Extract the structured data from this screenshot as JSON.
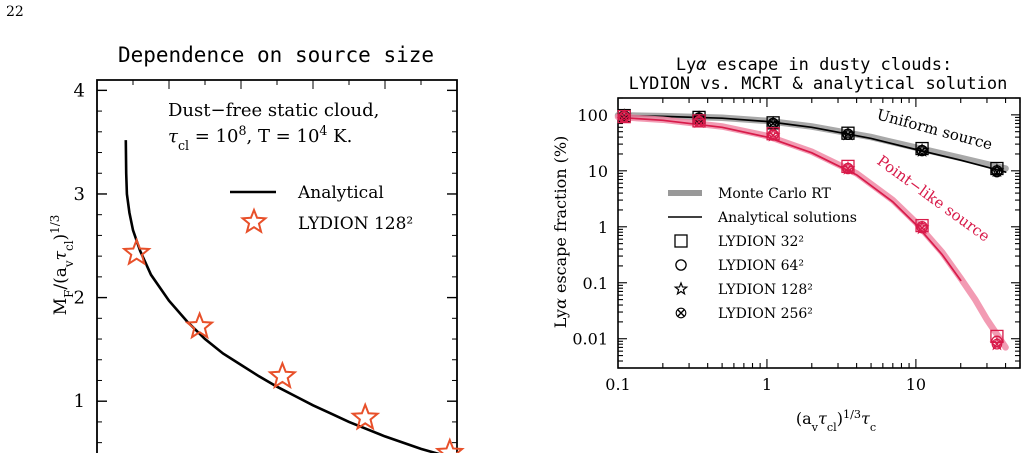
{
  "page": {
    "number": "22"
  },
  "chart_data": [
    {
      "type": "line",
      "title": "Dependence on source size",
      "ylabel": "M_F/(a_v τ_cl)^{1/3}",
      "xlabel": "",
      "ylim": [
        0.5,
        4.1
      ],
      "yticks": [
        1,
        2,
        3,
        4
      ],
      "xlim": [
        0,
        1
      ],
      "note_lines": [
        "Dust−free static cloud,",
        "τ_cl = 10^8, T = 10^4 K."
      ],
      "legend": [
        {
          "label": "Analytical",
          "kind": "line",
          "color": "#000000"
        },
        {
          "label": "LYDION 128²",
          "kind": "star",
          "color": "#e8502a"
        }
      ],
      "series": [
        {
          "name": "Analytical",
          "color": "#000000",
          "x": [
            0.08,
            0.081,
            0.083,
            0.09,
            0.1,
            0.12,
            0.15,
            0.2,
            0.25,
            0.3,
            0.35,
            0.4,
            0.45,
            0.5,
            0.55,
            0.6,
            0.65,
            0.7,
            0.75,
            0.8,
            0.85,
            0.9,
            0.95,
            1.0
          ],
          "y": [
            3.52,
            3.2,
            3.0,
            2.82,
            2.65,
            2.45,
            2.22,
            1.97,
            1.77,
            1.6,
            1.46,
            1.35,
            1.24,
            1.14,
            1.05,
            0.96,
            0.88,
            0.8,
            0.73,
            0.66,
            0.6,
            0.54,
            0.49,
            0.44
          ]
        },
        {
          "name": "LYDION 128²",
          "color": "#e8502a",
          "x": [
            0.11,
            0.285,
            0.515,
            0.745,
            0.98
          ],
          "y": [
            2.43,
            1.72,
            1.24,
            0.84,
            0.5
          ]
        }
      ]
    },
    {
      "type": "line",
      "title": "Lyα escape in dusty clouds:",
      "subtitle": "LYDION vs. MCRT & analytical solution",
      "xlabel": "(a_v τ_cl)^{1/3} τ_c",
      "ylabel": "Lyα escape fraction (%)",
      "xscale": "log",
      "yscale": "log",
      "xlim": [
        0.1,
        50
      ],
      "ylim": [
        0.003,
        200
      ],
      "xticks": [
        0.1,
        1,
        10
      ],
      "xtick_labels": [
        "0.1",
        "1",
        "10"
      ],
      "yticks": [
        0.01,
        0.1,
        1,
        10,
        100
      ],
      "ytick_labels": [
        "0.01",
        "0.1",
        "1",
        "10",
        "100"
      ],
      "annotations": [
        {
          "text": "Uniform source",
          "color": "#000000"
        },
        {
          "text": "Point−like source",
          "color": "#d81b4a"
        }
      ],
      "legend": [
        {
          "label": "Monte Carlo RT",
          "kind": "thick-line",
          "color": "#999999"
        },
        {
          "label": "Analytical solutions",
          "kind": "line",
          "color": "#000000"
        },
        {
          "label": "LYDION 32²",
          "kind": "square"
        },
        {
          "label": "LYDION 64²",
          "kind": "circle"
        },
        {
          "label": "LYDION 128²",
          "kind": "star"
        },
        {
          "label": "LYDION 256²",
          "kind": "cross"
        }
      ],
      "series": [
        {
          "name": "Monte Carlo RT (uniform)",
          "role": "mc",
          "color": "#9a9a9a",
          "x": [
            0.1,
            0.2,
            0.5,
            1,
            2,
            5,
            10,
            20,
            40
          ],
          "y": [
            98,
            95,
            89,
            78,
            62,
            40,
            26,
            17,
            11
          ]
        },
        {
          "name": "Analytical (uniform)",
          "role": "analytic",
          "color": "#000000",
          "x": [
            0.1,
            0.2,
            0.5,
            1,
            2,
            5,
            10,
            20,
            40
          ],
          "y": [
            97,
            94,
            87,
            76,
            60,
            38,
            24,
            15.5,
            9.5
          ]
        },
        {
          "name": "Monte Carlo RT (point-like)",
          "role": "mc",
          "color": "#f08aa6",
          "x": [
            0.1,
            0.2,
            0.5,
            1,
            2,
            4,
            7,
            10,
            15,
            20,
            25,
            30,
            35,
            40
          ],
          "y": [
            92,
            82,
            62,
            42,
            22,
            9,
            3,
            1.2,
            0.35,
            0.12,
            0.05,
            0.022,
            0.012,
            0.007
          ]
        },
        {
          "name": "Analytical (point-like)",
          "role": "analytic",
          "color": "#d81b4a",
          "x": [
            0.1,
            0.2,
            0.5,
            1,
            2,
            4,
            7,
            10,
            15,
            20
          ],
          "y": [
            90,
            80,
            60,
            40,
            21,
            8.5,
            2.8,
            1.1,
            0.32,
            0.11
          ]
        },
        {
          "name": "LYDION 32² (uniform)",
          "marker": "square",
          "color": "#000000",
          "x": [
            0.11,
            0.35,
            1.1,
            3.5,
            11,
            35
          ],
          "y": [
            97,
            90,
            72,
            47,
            25,
            11
          ]
        },
        {
          "name": "LYDION 64² (uniform)",
          "marker": "circle",
          "color": "#000000",
          "x": [
            0.11,
            0.35,
            1.1,
            3.5,
            11,
            35
          ],
          "y": [
            96,
            88,
            70,
            45,
            23,
            10
          ]
        },
        {
          "name": "LYDION 128² (uniform)",
          "marker": "star",
          "color": "#000000",
          "x": [
            0.11,
            0.35,
            1.1,
            3.5,
            11,
            35
          ],
          "y": [
            96,
            88,
            70,
            45,
            23,
            10
          ]
        },
        {
          "name": "LYDION 256² (uniform)",
          "marker": "cross",
          "color": "#000000",
          "x": [
            0.11,
            0.35,
            1.1,
            3.5,
            11,
            35
          ],
          "y": [
            96,
            88,
            70,
            45,
            23,
            9.5
          ]
        },
        {
          "name": "LYDION 32² (point-like)",
          "marker": "square",
          "color": "#d81b4a",
          "x": [
            0.11,
            0.35,
            1.1,
            3.5,
            11,
            35
          ],
          "y": [
            93,
            78,
            46,
            12,
            1.05,
            0.011
          ]
        },
        {
          "name": "LYDION 64² (point-like)",
          "marker": "circle",
          "color": "#d81b4a",
          "x": [
            0.11,
            0.35,
            1.1,
            3.5,
            11,
            35
          ],
          "y": [
            92,
            76,
            44,
            11,
            1.0,
            0.009
          ]
        },
        {
          "name": "LYDION 128² (point-like)",
          "marker": "star",
          "color": "#d81b4a",
          "x": [
            0.11,
            0.35,
            1.1,
            3.5,
            11,
            35
          ],
          "y": [
            92,
            75,
            43,
            11,
            0.95,
            0.008
          ]
        },
        {
          "name": "LYDION 256² (point-like)",
          "marker": "cross",
          "color": "#d81b4a",
          "x": [
            0.11,
            0.35,
            1.1,
            3.5,
            11,
            35
          ],
          "y": [
            92,
            75,
            43,
            11,
            0.95,
            0.008
          ]
        }
      ]
    }
  ]
}
